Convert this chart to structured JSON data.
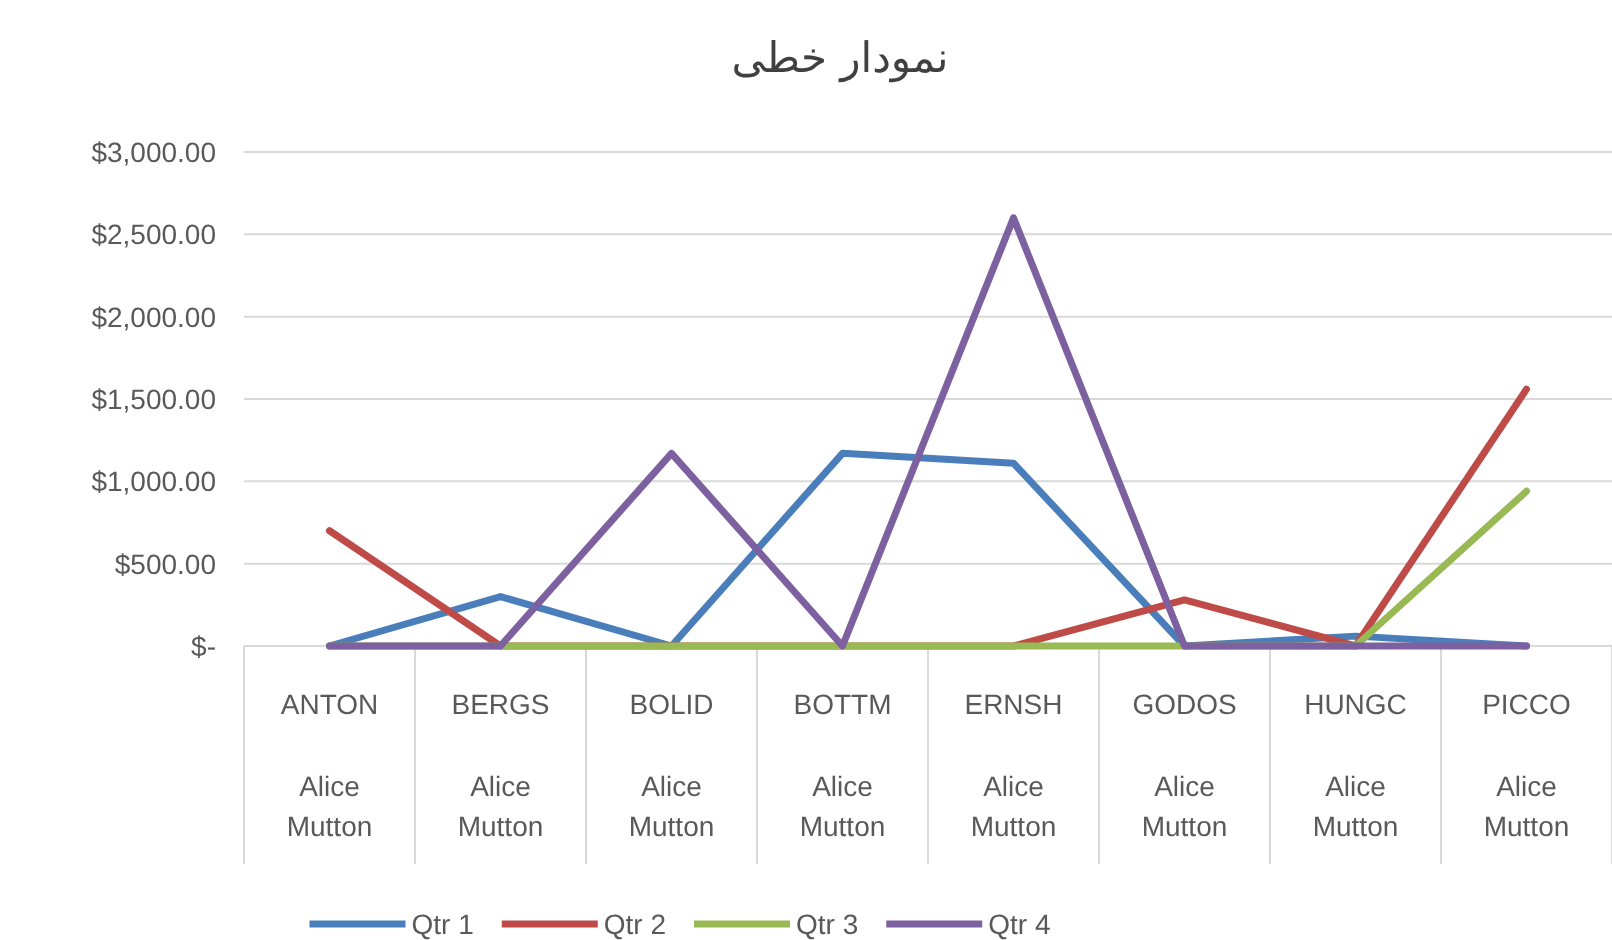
{
  "chart_data": {
    "type": "line",
    "title": "نمودار خطی",
    "categories": [
      "ANTON Alice Mutton",
      "BERGS Alice Mutton",
      "BOLID Alice Mutton",
      "BOTTM Alice Mutton",
      "ERNSH Alice Mutton",
      "GODOS Alice Mutton",
      "HUNGC Alice Mutton",
      "PICCO Alice Mutton"
    ],
    "series": [
      {
        "name": "Qtr 1",
        "color": "#4a7ebb",
        "values": [
          0,
          300,
          0,
          1170,
          1110,
          0,
          60,
          0
        ]
      },
      {
        "name": "Qtr 2",
        "color": "#be4b48",
        "values": [
          700,
          0,
          0,
          0,
          0,
          280,
          0,
          1560
        ]
      },
      {
        "name": "Qtr 3",
        "color": "#98b954",
        "values": [
          0,
          0,
          0,
          0,
          0,
          0,
          0,
          940
        ]
      },
      {
        "name": "Qtr 4",
        "color": "#7d60a0",
        "values": [
          0,
          0,
          1170,
          0,
          2600,
          0,
          0,
          0
        ]
      }
    ],
    "ylim": [
      0,
      3000
    ],
    "yticks": [
      {
        "value": 0,
        "label": "$-"
      },
      {
        "value": 500,
        "label": "$500.00"
      },
      {
        "value": 1000,
        "label": "$1,000.00"
      },
      {
        "value": 1500,
        "label": "$1,500.00"
      },
      {
        "value": 2000,
        "label": "$2,000.00"
      },
      {
        "value": 2500,
        "label": "$2,500.00"
      },
      {
        "value": 3000,
        "label": "$3,000.00"
      }
    ],
    "grid": "y",
    "legend": "bottom"
  }
}
